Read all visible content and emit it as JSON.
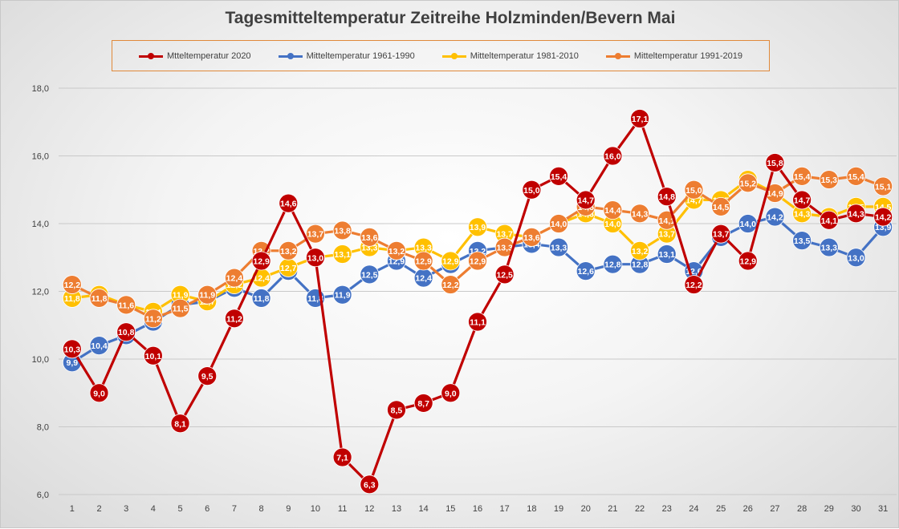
{
  "chart_data": {
    "type": "line",
    "title": "Tagesmitteltemperatur Zeitreihe Holzminden/Bevern Mai",
    "xlabel": "",
    "ylabel": "",
    "ylim": [
      6,
      18
    ],
    "yticks": [
      "6,0",
      "8,0",
      "10,0",
      "12,0",
      "14,0",
      "16,0",
      "18,0"
    ],
    "ytick_values": [
      6,
      8,
      10,
      12,
      14,
      16,
      18
    ],
    "categories": [
      "1",
      "2",
      "3",
      "4",
      "5",
      "6",
      "7",
      "8",
      "9",
      "10",
      "11",
      "12",
      "13",
      "14",
      "15",
      "16",
      "17",
      "18",
      "19",
      "20",
      "21",
      "22",
      "23",
      "24",
      "25",
      "26",
      "27",
      "28",
      "29",
      "30",
      "31"
    ],
    "grid": true,
    "legend_position": "top",
    "series": [
      {
        "name": "Mitteltemperatur 1961-1990",
        "color": "#4472c4",
        "values": [
          9.9,
          10.4,
          10.7,
          11.1,
          11.6,
          11.7,
          12.1,
          11.8,
          12.6,
          11.8,
          11.9,
          12.5,
          12.9,
          12.4,
          12.8,
          13.2,
          13.3,
          13.4,
          13.3,
          12.6,
          12.8,
          12.8,
          13.1,
          12.6,
          13.6,
          14.0,
          14.2,
          13.5,
          13.3,
          13.0,
          13.9
        ],
        "labels": [
          "9,9",
          "10,4",
          "10,7",
          "11,1",
          "11,6",
          "11,7",
          "12,1",
          "11,8",
          "12,6",
          "11,8",
          "11,9",
          "12,5",
          "12,9",
          "12,4",
          "12,8",
          "13,2",
          "13,3",
          "13,4",
          "13,3",
          "12,6",
          "12,8",
          "12,8",
          "13,1",
          "12,6",
          "13,6",
          "14,0",
          "14,2",
          "13,5",
          "13,3",
          "13,0",
          "13,9"
        ]
      },
      {
        "name": "Mitteltemperatur 1981-2010",
        "color": "#ffc000",
        "values": [
          11.8,
          11.9,
          11.6,
          11.4,
          11.9,
          11.7,
          12.2,
          12.4,
          12.7,
          13.0,
          13.1,
          13.3,
          13.2,
          13.3,
          12.9,
          13.9,
          13.7,
          13.6,
          14.0,
          14.3,
          14.0,
          13.2,
          13.7,
          14.7,
          14.7,
          15.3,
          14.9,
          14.3,
          14.2,
          14.5,
          14.5
        ],
        "labels": [
          "11,8",
          "11,9",
          "11,6",
          "11,4",
          "11,9",
          "11,7",
          "12,2",
          "12,4",
          "12,7",
          "13,0",
          "13,1",
          "13,3",
          "13,2",
          "13,3",
          "12,9",
          "13,9",
          "13,7",
          "13,6",
          "14,0",
          "14,3",
          "14,0",
          "13,2",
          "13,7",
          "14,7",
          "14,7",
          "15,3",
          "14,9",
          "14,3",
          "14,2",
          "14,5",
          "14,5"
        ]
      },
      {
        "name": "Mitteltemperatur 1991-2019",
        "color": "#ed7d31",
        "values": [
          12.2,
          11.8,
          11.6,
          11.2,
          11.5,
          11.9,
          12.4,
          13.2,
          13.2,
          13.7,
          13.8,
          13.6,
          13.2,
          12.9,
          12.2,
          12.9,
          13.3,
          13.6,
          14.0,
          14.5,
          14.4,
          14.3,
          14.1,
          15.0,
          14.5,
          15.2,
          14.9,
          15.4,
          15.3,
          15.4,
          15.1
        ],
        "labels": [
          "12,2",
          "11,8",
          "11,6",
          "11,2",
          "11,5",
          "11,9",
          "12,4",
          "13,2",
          "13,2",
          "13,7",
          "13,8",
          "13,6",
          "13,2",
          "12,9",
          "12,2",
          "12,9",
          "13,3",
          "13,6",
          "14,0",
          "14,5",
          "14,4",
          "14,3",
          "14,1",
          "15,0",
          "14,5",
          "15,2",
          "14,9",
          "15,4",
          "15,3",
          "15,4",
          "15,1"
        ]
      },
      {
        "name": "Mtteltemperatur 2020",
        "color": "#c00000",
        "values": [
          10.3,
          9.0,
          10.8,
          10.1,
          8.1,
          9.5,
          11.2,
          12.9,
          14.6,
          13.0,
          7.1,
          6.3,
          8.5,
          8.7,
          9.0,
          11.1,
          12.5,
          15.0,
          15.4,
          14.7,
          16.0,
          17.1,
          14.8,
          12.2,
          13.7,
          12.9,
          15.8,
          14.7,
          14.1,
          14.3,
          14.2
        ],
        "labels": [
          "10,3",
          "9,0",
          "10,8",
          "10,1",
          "8,1",
          "9,5",
          "11,2",
          "12,9",
          "14,6",
          "13,0",
          "7,1",
          "6,3",
          "8,5",
          "8,7",
          "9,0",
          "11,1",
          "12,5",
          "15,0",
          "15,4",
          "14,7",
          "16,0",
          "17,1",
          "14,8",
          "12,2",
          "13,7",
          "12,9",
          "15,8",
          "14,7",
          "14,1",
          "14,3",
          "14,2"
        ]
      }
    ]
  },
  "legend": {
    "items": [
      {
        "label": "Mtteltemperatur 2020",
        "color": "#c00000"
      },
      {
        "label": "Mitteltemperatur 1961-1990",
        "color": "#4472c4"
      },
      {
        "label": "Mitteltemperatur 1981-2010",
        "color": "#ffc000"
      },
      {
        "label": "Mitteltemperatur 1991-2019",
        "color": "#ed7d31"
      }
    ]
  }
}
